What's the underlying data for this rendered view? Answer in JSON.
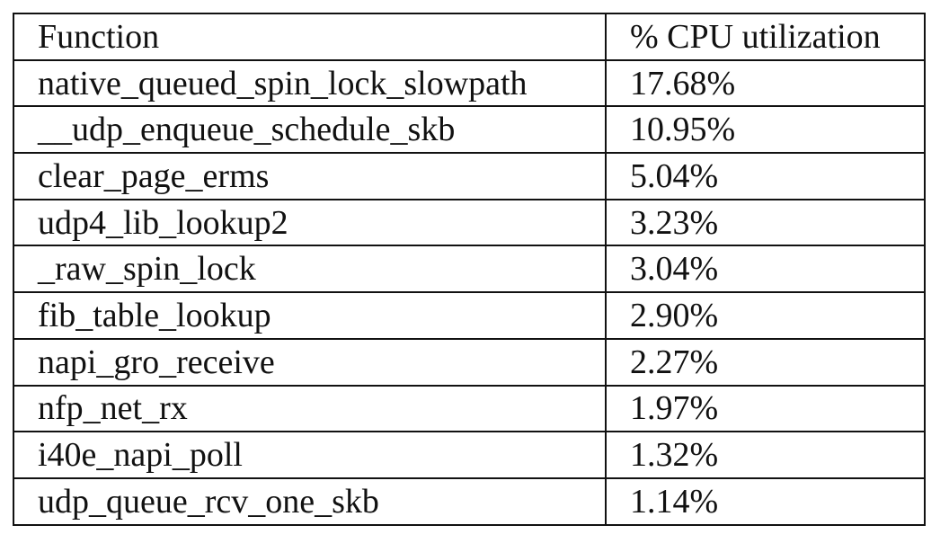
{
  "table": {
    "headers": {
      "function": "Function",
      "cpu": "% CPU utilization"
    },
    "rows": [
      {
        "function": "native_queued_spin_lock_slowpath",
        "cpu": "17.68%"
      },
      {
        "function": "__udp_enqueue_schedule_skb",
        "cpu": "10.95%"
      },
      {
        "function": "clear_page_erms",
        "cpu": "5.04%"
      },
      {
        "function": "udp4_lib_lookup2",
        "cpu": "3.23%"
      },
      {
        "function": "_raw_spin_lock",
        "cpu": "3.04%"
      },
      {
        "function": "fib_table_lookup",
        "cpu": "2.90%"
      },
      {
        "function": "napi_gro_receive",
        "cpu": "2.27%"
      },
      {
        "function": "nfp_net_rx",
        "cpu": "1.97%"
      },
      {
        "function": "i40e_napi_poll",
        "cpu": "1.32%"
      },
      {
        "function": "udp_queue_rcv_one_skb",
        "cpu": "1.14%"
      }
    ]
  }
}
